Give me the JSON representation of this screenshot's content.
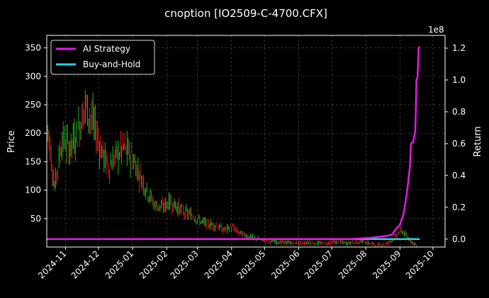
{
  "chart_data": {
    "type": "line",
    "title": "cnoption [IO2509-C-4700.CFX]",
    "xlabel": "",
    "ylabel": "Price",
    "ylabel_right": "Return",
    "right_axis_multiplier": "1e8",
    "x_range": [
      "2024-10-15",
      "2025-10-12"
    ],
    "ylim": [
      0,
      372
    ],
    "ylim_right": [
      -0.05,
      1.28
    ],
    "x_ticks": [
      "2024-11",
      "2024-12",
      "2025-01",
      "2025-02",
      "2025-03",
      "2025-04",
      "2025-05",
      "2025-06",
      "2025-07",
      "2025-08",
      "2025-09",
      "2025-10"
    ],
    "y_ticks": [
      50,
      100,
      150,
      200,
      250,
      300,
      350
    ],
    "y_ticks_right": [
      0.0,
      0.2,
      0.4,
      0.6,
      0.8,
      1.0,
      1.2
    ],
    "grid": true,
    "legend_position": "top-left",
    "colors": {
      "background": "#000000",
      "ai_strategy": "#e815e8",
      "buy_and_hold": "#22d3e6",
      "candle_up": "#1db81d",
      "candle_down": "#e11d1d",
      "grid": "#555555"
    },
    "series": [
      {
        "name": "AI Strategy",
        "axis": "right",
        "x": [
          "2024-10-15",
          "2025-07-20",
          "2025-08-05",
          "2025-08-20",
          "2025-08-25",
          "2025-08-28",
          "2025-09-01",
          "2025-09-04",
          "2025-09-06",
          "2025-09-08",
          "2025-09-10",
          "2025-09-11",
          "2025-09-13",
          "2025-09-15",
          "2025-09-16",
          "2025-09-17",
          "2025-09-18",
          "2025-09-19"
        ],
        "values": [
          0.0,
          0.001,
          0.008,
          0.02,
          0.03,
          0.06,
          0.09,
          0.15,
          0.23,
          0.33,
          0.45,
          0.6,
          0.61,
          0.68,
          1.0,
          1.02,
          1.2,
          1.21
        ]
      },
      {
        "name": "Buy-and-Hold",
        "axis": "right",
        "x": [
          "2024-10-15",
          "2025-09-19"
        ],
        "values": [
          0.0,
          0.0
        ]
      },
      {
        "name": "Price",
        "type": "candlestick",
        "axis": "left",
        "x": [
          "2024-10-15",
          "2024-10-22",
          "2024-10-29",
          "2024-11-05",
          "2024-11-12",
          "2024-11-19",
          "2024-11-26",
          "2024-12-03",
          "2024-12-10",
          "2024-12-17",
          "2024-12-24",
          "2024-12-31",
          "2025-01-07",
          "2025-01-14",
          "2025-01-21",
          "2025-01-28",
          "2025-02-04",
          "2025-02-11",
          "2025-02-18",
          "2025-02-25",
          "2025-03-04",
          "2025-03-11",
          "2025-03-18",
          "2025-03-25",
          "2025-04-01",
          "2025-04-08",
          "2025-04-15",
          "2025-04-22",
          "2025-04-29",
          "2025-05-06",
          "2025-05-13",
          "2025-05-20",
          "2025-05-27",
          "2025-06-03",
          "2025-06-10",
          "2025-06-17",
          "2025-06-24",
          "2025-07-01",
          "2025-07-08",
          "2025-07-15",
          "2025-07-22",
          "2025-07-29",
          "2025-08-05",
          "2025-08-12",
          "2025-08-19",
          "2025-08-26",
          "2025-09-02",
          "2025-09-09",
          "2025-09-16"
        ],
        "values": [
          230,
          105,
          190,
          175,
          200,
          250,
          220,
          175,
          140,
          160,
          175,
          160,
          130,
          100,
          75,
          70,
          80,
          70,
          60,
          55,
          45,
          40,
          38,
          30,
          35,
          25,
          20,
          15,
          12,
          10,
          9,
          8,
          7,
          7,
          8,
          7,
          6,
          9,
          8,
          7,
          8,
          10,
          6,
          4,
          5,
          15,
          30,
          15,
          3
        ]
      }
    ]
  }
}
